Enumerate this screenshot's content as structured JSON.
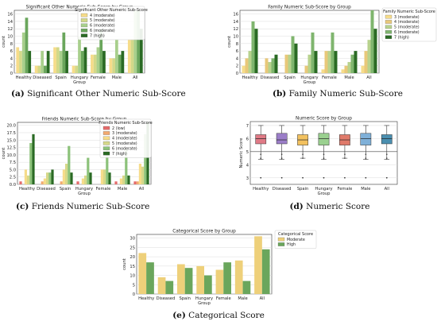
{
  "captions": [
    {
      "tag": "(a)",
      "text": "Significant Other Numeric Sub-Score"
    },
    {
      "tag": "(b)",
      "text": "Family Numeric Sub-Score"
    },
    {
      "tag": "(c)",
      "text": "Friends Numeric Sub-Score"
    },
    {
      "tag": "(d)",
      "text": "Numeric Score"
    },
    {
      "tag": "(e)",
      "text": "Categorical Score"
    }
  ],
  "chart_data": [
    {
      "type": "bar",
      "title": "Significant Other Numeric Sub-Score by Group",
      "xlabel": "",
      "ylabel": "count",
      "ylim": [
        0,
        17
      ],
      "yticks": [
        0,
        2,
        4,
        6,
        8,
        10,
        12,
        14,
        16
      ],
      "grid": true,
      "legend_title": "Significant Other Numeric Sub-Score",
      "legend_position": "top-right",
      "categories": [
        "Healthy",
        "Diseased",
        "Spain",
        "Hungary Group",
        "Female",
        "Male",
        "All"
      ],
      "series": [
        {
          "name": "4 (moderate)",
          "color": "#f6dc8a",
          "values": [
            7,
            2,
            7,
            2,
            5,
            4,
            9
          ]
        },
        {
          "name": "5 (moderate)",
          "color": "#d2d889",
          "values": [
            6,
            2,
            7,
            2,
            5,
            4,
            9
          ]
        },
        {
          "name": "6 (moderate)",
          "color": "#a8cf8c",
          "values": [
            11,
            6,
            6,
            10,
            7,
            9,
            17
          ]
        },
        {
          "name": "6 (moderate)",
          "color": "#6aa65c",
          "values": [
            15,
            2,
            11,
            6,
            12,
            5,
            17
          ]
        },
        {
          "name": "7 (high)",
          "color": "#2a6a24",
          "values": [
            6,
            6,
            6,
            7,
            6,
            6,
            12
          ]
        }
      ]
    },
    {
      "type": "bar",
      "title": "Family Numeric Sub-Score by Group",
      "xlabel": "",
      "ylabel": "count",
      "ylim": [
        0,
        17
      ],
      "yticks": [
        0,
        2,
        4,
        6,
        8,
        10,
        12,
        14,
        16
      ],
      "grid": true,
      "legend_title": "Family Numeric Sub-Score",
      "legend_position": "right",
      "categories": [
        "Healthy",
        "Diseased",
        "Spain",
        "Hungary Group",
        "Female",
        "Male",
        "All"
      ],
      "series": [
        {
          "name": "3 (moderate)",
          "color": "#f6dc8a",
          "values": [
            2,
            0,
            0,
            0,
            1,
            1,
            2
          ]
        },
        {
          "name": "4 (moderate)",
          "color": "#e8c87a",
          "values": [
            4,
            4,
            5,
            2,
            6,
            2,
            6
          ]
        },
        {
          "name": "5 (moderate)",
          "color": "#b7d28d",
          "values": [
            6,
            3,
            5,
            5,
            6,
            3,
            9
          ]
        },
        {
          "name": "6 (moderate)",
          "color": "#7fb56e",
          "values": [
            14,
            4,
            10,
            11,
            11,
            5,
            17
          ]
        },
        {
          "name": "7 (high)",
          "color": "#2a6a24",
          "values": [
            12,
            5,
            8,
            6,
            6,
            6,
            12
          ]
        }
      ]
    },
    {
      "type": "bar",
      "title": "Friends Numeric Sub-Score by Group",
      "xlabel": "",
      "ylabel": "count",
      "ylim": [
        0,
        21
      ],
      "yticks": [
        0,
        2.5,
        5,
        7.5,
        10,
        12.5,
        15,
        17.5,
        20
      ],
      "ytick_labels": [
        "0.0",
        "2.5",
        "5.0",
        "7.5",
        "10.0",
        "12.5",
        "15.0",
        "17.5",
        "20.0"
      ],
      "grid": true,
      "legend_title": "Friends Numeric Sub-Score",
      "legend_position": "top-right",
      "categories": [
        "Healthy",
        "Diseased",
        "Spain",
        "Hungary Group",
        "Female",
        "Male",
        "All"
      ],
      "series": [
        {
          "name": "2 (low)",
          "color": "#e46b6b",
          "values": [
            1,
            0,
            0,
            1,
            0,
            1,
            1
          ]
        },
        {
          "name": "3 (moderate)",
          "color": "#f2a96f",
          "values": [
            0,
            1,
            1,
            0,
            0,
            0,
            1
          ]
        },
        {
          "name": "4 (moderate)",
          "color": "#f6dc8a",
          "values": [
            5,
            2,
            5,
            2,
            5,
            2,
            7
          ]
        },
        {
          "name": "5 (moderate)",
          "color": "#d6d889",
          "values": [
            3,
            4,
            7,
            3,
            5,
            3,
            6
          ]
        },
        {
          "name": "6 (moderate)",
          "color": "#8cc27a",
          "values": [
            14,
            4,
            13,
            9,
            15,
            12,
            17
          ]
        },
        {
          "name": "7 (high)",
          "color": "#2a6a24",
          "values": [
            17,
            5,
            4,
            4,
            4,
            3,
            21
          ]
        }
      ]
    },
    {
      "type": "box",
      "title": "Numeric Score by Group",
      "xlabel": "",
      "ylabel": "Numeric Score",
      "ylim": [
        2.5,
        7.3
      ],
      "yticks": [
        3,
        4,
        5,
        6,
        7
      ],
      "grid": true,
      "reference_line": 5,
      "categories": [
        "Healthy",
        "Diseased",
        "Spain",
        "Hungary Group",
        "Female",
        "Male",
        "All"
      ],
      "boxes": [
        {
          "color": "#e07a86",
          "min": 4.4,
          "q1": 5.6,
          "median": 6.0,
          "q3": 6.3,
          "max": 7.0,
          "outliers": [
            3.0
          ]
        },
        {
          "color": "#9b7ec8",
          "min": 4.4,
          "q1": 5.6,
          "median": 5.9,
          "q3": 6.4,
          "max": 7.0,
          "outliers": [
            3.0
          ]
        },
        {
          "color": "#f2c15f",
          "min": 4.5,
          "q1": 5.5,
          "median": 5.9,
          "q3": 6.3,
          "max": 7.0,
          "outliers": [
            3.0
          ]
        },
        {
          "color": "#9ad08f",
          "min": 4.4,
          "q1": 5.5,
          "median": 6.0,
          "q3": 6.4,
          "max": 7.0,
          "outliers": [
            3.0
          ]
        },
        {
          "color": "#e07a6a",
          "min": 4.5,
          "q1": 5.5,
          "median": 5.9,
          "q3": 6.3,
          "max": 7.0,
          "outliers": [
            3.0
          ]
        },
        {
          "color": "#7fb0d8",
          "min": 4.4,
          "q1": 5.5,
          "median": 6.0,
          "q3": 6.4,
          "max": 7.0,
          "outliers": [
            3.0
          ]
        },
        {
          "color": "#4a8fb0",
          "min": 4.4,
          "q1": 5.6,
          "median": 6.0,
          "q3": 6.3,
          "max": 7.0,
          "outliers": [
            3.0
          ]
        }
      ]
    },
    {
      "type": "bar",
      "title": "Categorical Score by Group",
      "xlabel": "",
      "ylabel": "count",
      "ylim": [
        0,
        32
      ],
      "yticks": [
        0,
        5,
        10,
        15,
        20,
        25,
        30
      ],
      "grid": true,
      "legend_title": "Categorical Score",
      "legend_position": "top-right",
      "categories": [
        "Healthy",
        "Diseased",
        "Spain",
        "Hungary Group",
        "Female",
        "Male",
        "All"
      ],
      "series": [
        {
          "name": "Moderate",
          "color": "#eed07a",
          "values": [
            22,
            9,
            16,
            15,
            13,
            18,
            31
          ]
        },
        {
          "name": "High",
          "color": "#6aa65c",
          "values": [
            17,
            7,
            14,
            10,
            17,
            7,
            24
          ]
        }
      ]
    }
  ]
}
